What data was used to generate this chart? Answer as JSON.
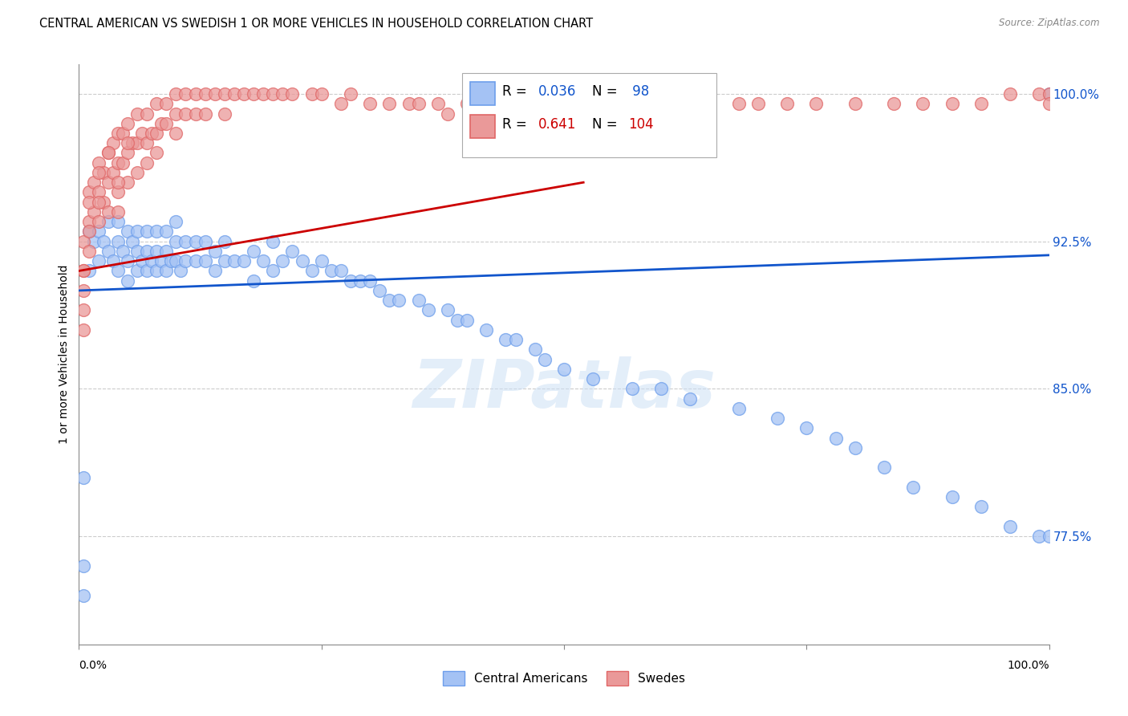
{
  "title": "CENTRAL AMERICAN VS SWEDISH 1 OR MORE VEHICLES IN HOUSEHOLD CORRELATION CHART",
  "source": "Source: ZipAtlas.com",
  "ylabel": "1 or more Vehicles in Household",
  "yticks": [
    77.5,
    85.0,
    92.5,
    100.0
  ],
  "ytick_labels": [
    "77.5%",
    "85.0%",
    "92.5%",
    "100.0%"
  ],
  "xmin": 0.0,
  "xmax": 1.0,
  "ymin": 72.0,
  "ymax": 101.5,
  "legend_r_blue": "R = 0.036",
  "legend_n_blue": "N =  98",
  "legend_r_pink": "R = 0.641",
  "legend_n_pink": "N = 104",
  "legend_label_blue": "Central Americans",
  "legend_label_pink": "Swedes",
  "blue_color": "#a4c2f4",
  "pink_color": "#ea9999",
  "blue_edge_color": "#6d9eeb",
  "pink_edge_color": "#e06666",
  "blue_line_color": "#1155cc",
  "pink_line_color": "#cc0000",
  "text_blue": "#1155cc",
  "text_pink": "#cc0000",
  "watermark": "ZIPatlas",
  "blue_scatter_x": [
    0.005,
    0.01,
    0.01,
    0.015,
    0.02,
    0.02,
    0.025,
    0.03,
    0.03,
    0.035,
    0.04,
    0.04,
    0.04,
    0.045,
    0.05,
    0.05,
    0.05,
    0.055,
    0.06,
    0.06,
    0.06,
    0.065,
    0.07,
    0.07,
    0.07,
    0.075,
    0.08,
    0.08,
    0.08,
    0.085,
    0.09,
    0.09,
    0.09,
    0.095,
    0.1,
    0.1,
    0.1,
    0.105,
    0.11,
    0.11,
    0.12,
    0.12,
    0.13,
    0.13,
    0.14,
    0.14,
    0.15,
    0.15,
    0.16,
    0.17,
    0.18,
    0.18,
    0.19,
    0.2,
    0.2,
    0.21,
    0.22,
    0.23,
    0.24,
    0.25,
    0.26,
    0.27,
    0.28,
    0.29,
    0.3,
    0.31,
    0.32,
    0.33,
    0.35,
    0.36,
    0.38,
    0.39,
    0.4,
    0.42,
    0.44,
    0.45,
    0.47,
    0.48,
    0.5,
    0.53,
    0.57,
    0.6,
    0.63,
    0.68,
    0.72,
    0.75,
    0.78,
    0.8,
    0.83,
    0.86,
    0.9,
    0.93,
    0.96,
    0.99,
    1.0,
    1.0,
    0.005,
    0.005
  ],
  "blue_scatter_y": [
    80.5,
    93.0,
    91.0,
    92.5,
    93.0,
    91.5,
    92.5,
    93.5,
    92.0,
    91.5,
    93.5,
    92.5,
    91.0,
    92.0,
    93.0,
    91.5,
    90.5,
    92.5,
    93.0,
    92.0,
    91.0,
    91.5,
    93.0,
    92.0,
    91.0,
    91.5,
    93.0,
    92.0,
    91.0,
    91.5,
    93.0,
    92.0,
    91.0,
    91.5,
    93.5,
    92.5,
    91.5,
    91.0,
    92.5,
    91.5,
    92.5,
    91.5,
    92.5,
    91.5,
    92.0,
    91.0,
    92.5,
    91.5,
    91.5,
    91.5,
    92.0,
    90.5,
    91.5,
    92.5,
    91.0,
    91.5,
    92.0,
    91.5,
    91.0,
    91.5,
    91.0,
    91.0,
    90.5,
    90.5,
    90.5,
    90.0,
    89.5,
    89.5,
    89.5,
    89.0,
    89.0,
    88.5,
    88.5,
    88.0,
    87.5,
    87.5,
    87.0,
    86.5,
    86.0,
    85.5,
    85.0,
    85.0,
    84.5,
    84.0,
    83.5,
    83.0,
    82.5,
    82.0,
    81.0,
    80.0,
    79.5,
    79.0,
    78.0,
    77.5,
    77.5,
    100.0,
    76.0,
    74.5
  ],
  "pink_scatter_x": [
    0.005,
    0.005,
    0.01,
    0.01,
    0.01,
    0.015,
    0.015,
    0.02,
    0.02,
    0.02,
    0.025,
    0.025,
    0.03,
    0.03,
    0.03,
    0.035,
    0.035,
    0.04,
    0.04,
    0.04,
    0.045,
    0.045,
    0.05,
    0.05,
    0.05,
    0.055,
    0.06,
    0.06,
    0.06,
    0.065,
    0.07,
    0.07,
    0.07,
    0.075,
    0.08,
    0.08,
    0.08,
    0.085,
    0.09,
    0.09,
    0.1,
    0.1,
    0.1,
    0.11,
    0.11,
    0.12,
    0.12,
    0.13,
    0.13,
    0.14,
    0.15,
    0.15,
    0.16,
    0.17,
    0.18,
    0.19,
    0.2,
    0.21,
    0.22,
    0.24,
    0.25,
    0.27,
    0.28,
    0.3,
    0.32,
    0.34,
    0.35,
    0.37,
    0.38,
    0.4,
    0.42,
    0.44,
    0.46,
    0.5,
    0.52,
    0.55,
    0.58,
    0.62,
    0.65,
    0.68,
    0.7,
    0.73,
    0.76,
    0.8,
    0.84,
    0.87,
    0.9,
    0.93,
    0.96,
    0.99,
    1.0,
    1.0,
    0.005,
    0.005,
    0.005,
    0.005,
    0.01,
    0.01,
    0.02,
    0.02,
    0.03,
    0.04,
    0.04,
    0.05
  ],
  "pink_scatter_y": [
    92.5,
    91.0,
    95.0,
    93.5,
    92.0,
    95.5,
    94.0,
    96.5,
    95.0,
    93.5,
    96.0,
    94.5,
    97.0,
    95.5,
    94.0,
    97.5,
    96.0,
    98.0,
    96.5,
    95.0,
    98.0,
    96.5,
    98.5,
    97.0,
    95.5,
    97.5,
    99.0,
    97.5,
    96.0,
    98.0,
    99.0,
    97.5,
    96.5,
    98.0,
    99.5,
    98.0,
    97.0,
    98.5,
    99.5,
    98.5,
    100.0,
    99.0,
    98.0,
    100.0,
    99.0,
    100.0,
    99.0,
    100.0,
    99.0,
    100.0,
    100.0,
    99.0,
    100.0,
    100.0,
    100.0,
    100.0,
    100.0,
    100.0,
    100.0,
    100.0,
    100.0,
    99.5,
    100.0,
    99.5,
    99.5,
    99.5,
    99.5,
    99.5,
    99.0,
    99.5,
    99.5,
    99.5,
    99.5,
    99.5,
    99.5,
    99.5,
    99.5,
    99.5,
    99.5,
    99.5,
    99.5,
    99.5,
    99.5,
    99.5,
    99.5,
    99.5,
    99.5,
    99.5,
    100.0,
    100.0,
    100.0,
    99.5,
    91.0,
    90.0,
    89.0,
    88.0,
    94.5,
    93.0,
    96.0,
    94.5,
    97.0,
    95.5,
    94.0,
    97.5
  ]
}
